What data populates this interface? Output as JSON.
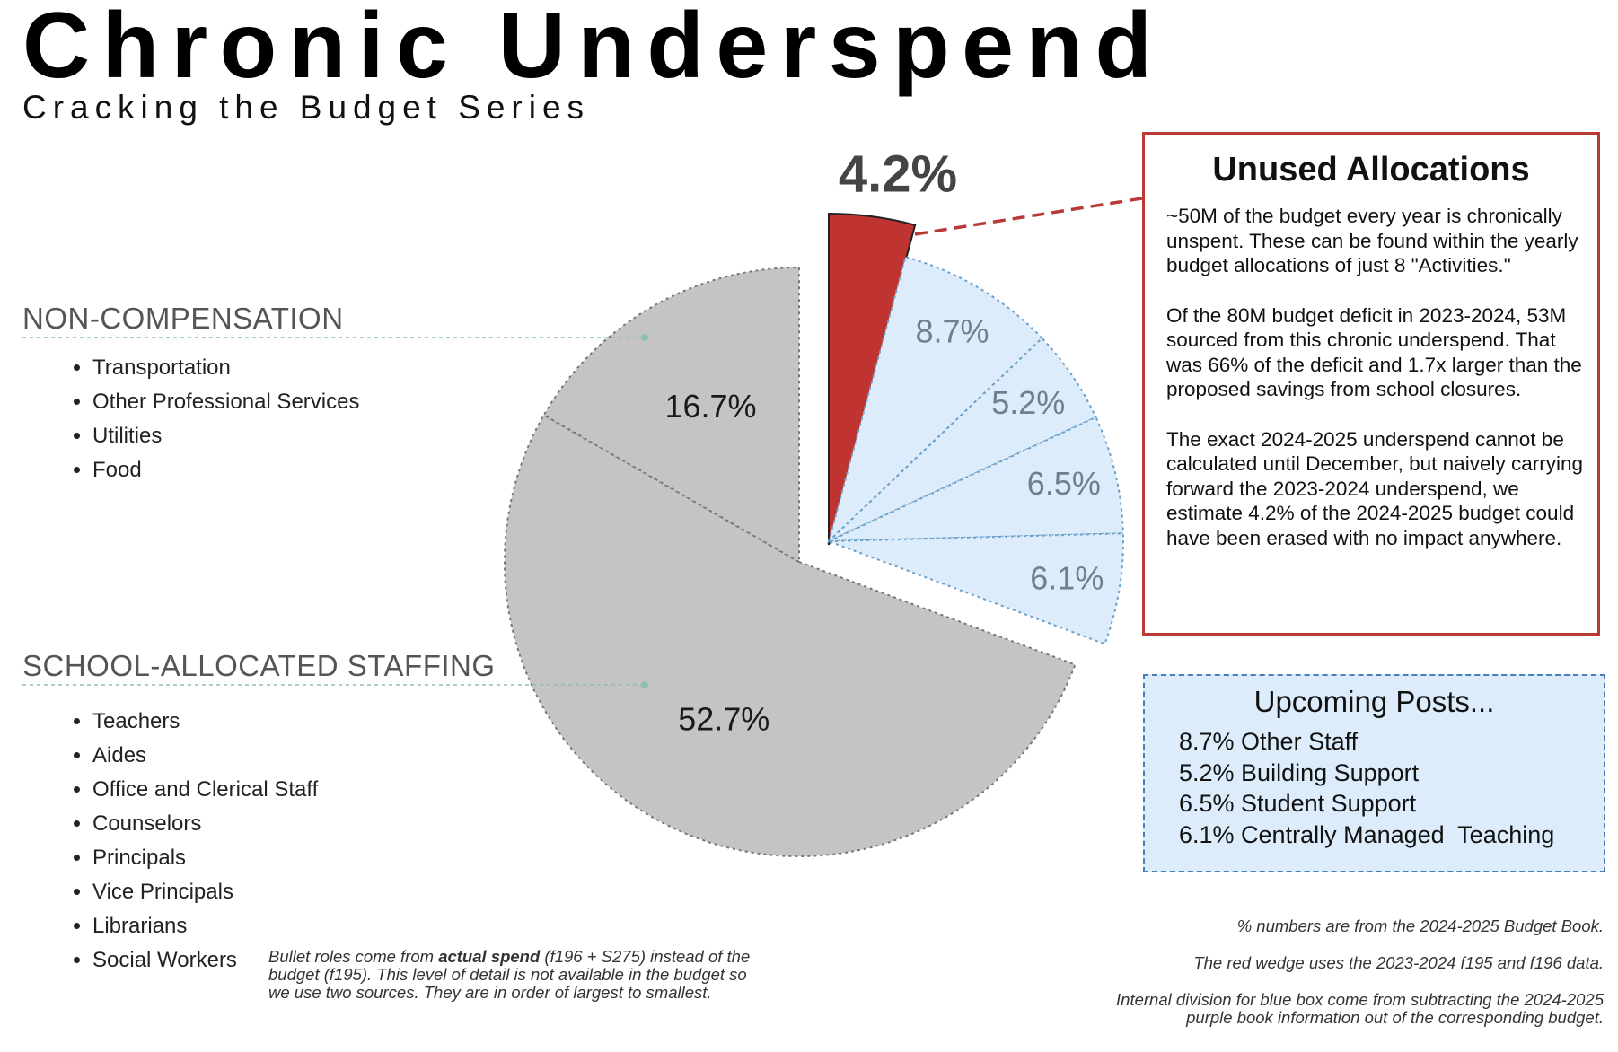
{
  "chart_data": {
    "type": "pie",
    "title": "Chronic Underspend",
    "subtitle": "Cracking the Budget Series",
    "values": [
      4.2,
      8.7,
      5.2,
      6.5,
      6.1,
      52.7,
      16.7
    ],
    "value_labels": [
      "4.2%",
      "8.7%",
      "5.2%",
      "6.5%",
      "6.1%",
      "52.7%",
      "16.7%"
    ],
    "colors": [
      "#bf3330",
      "#dcecfa",
      "#dcecfa",
      "#dcecfa",
      "#dcecfa",
      "#c4c4c4",
      "#c4c4c4"
    ]
  },
  "sections": [
    {
      "heading": "NON-COMPENSATION",
      "items": [
        "Transportation",
        "Other Professional Services",
        "Utilities",
        "Food"
      ]
    },
    {
      "heading": "SCHOOL-ALLOCATED STAFFING",
      "items": [
        "Teachers",
        "Aides",
        "Office and Clerical Staff",
        "Counselors",
        "Principals",
        "Vice Principals",
        "Librarians",
        "Social Workers"
      ]
    }
  ],
  "footnote_left": [
    "Bullet roles come from ",
    "actual spend",
    " (f196 + S275) instead of the budget (f195). This level of detail is not available in the budget so we use two sources. They are in order of largest to smallest."
  ],
  "unused_box": {
    "title": "Unused Allocations",
    "paragraphs": [
      "~50M of the budget every year is chronically unspent. These can be found within the yearly budget allocations of just 8 \"Activities.\"",
      "Of the 80M budget deficit in 2023-2024, 53M sourced from this chronic underspend. That was 66% of the deficit and 1.7x larger than the proposed savings from school closures.",
      "The exact 2024-2025 underspend cannot be calculated until December, but naively carrying forward the 2023-2024 underspend, we estimate 4.2% of the 2024-2025 budget could have been erased with no impact anywhere."
    ]
  },
  "upcoming_box": {
    "title": "Upcoming Posts...",
    "items": [
      "8.7% Other Staff",
      "5.2% Building Support",
      "6.5% Student Support",
      "6.1% Centrally Managed  Teaching"
    ]
  },
  "footnotes_right": [
    [
      "% numbers are from the 2024-2025 Budget Book."
    ],
    [
      "The red wedge uses the 2023-2024 f195 and f196 data."
    ],
    [
      "Internal  division for blue box come from subtracting the 2024-2025",
      "purple book information out of the corresponding budget."
    ]
  ]
}
